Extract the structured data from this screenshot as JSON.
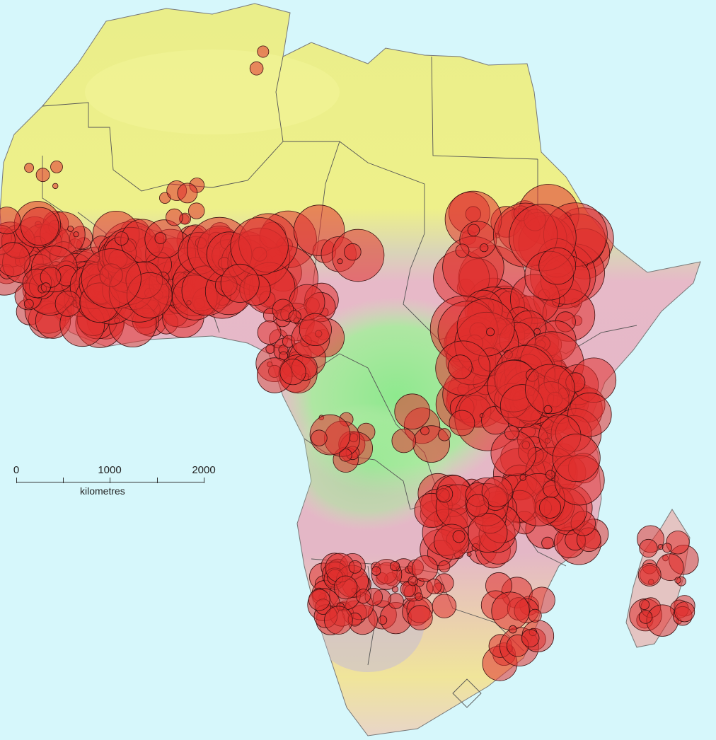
{
  "scale_bar": {
    "ticks": [
      "0",
      "1000",
      "2000"
    ],
    "unit": "kilometres"
  },
  "colors": {
    "ocean": "#d6f7fb",
    "sahara": "#eef08a",
    "sahel_pink": "#e8b9c9",
    "rainforest": "#96eb96",
    "points_fill": "#e0302d",
    "points_stroke": "#3b1010",
    "borders": "#555555"
  }
}
